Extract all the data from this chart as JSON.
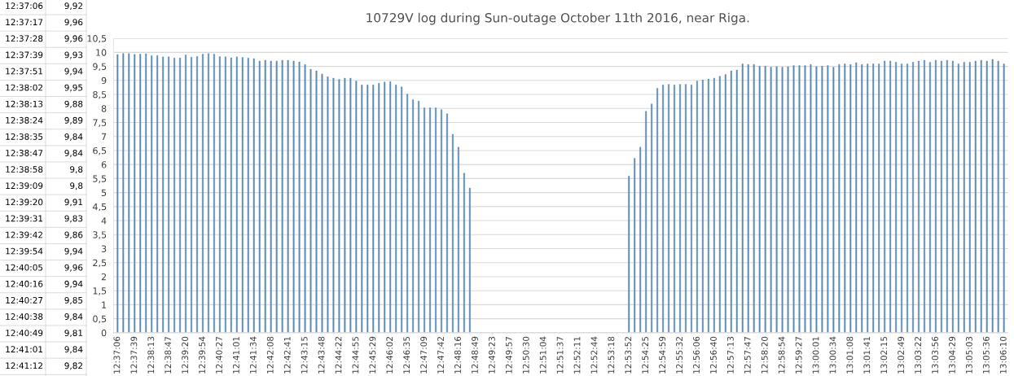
{
  "chart_data": {
    "type": "bar",
    "title": "10729V log during Sun-outage October 11th 2016, near Riga.",
    "categories": [
      "12:37:06",
      null,
      null,
      "12:37:39",
      null,
      null,
      "12:38:13",
      null,
      null,
      "12:38:47",
      null,
      null,
      "12:39:20",
      null,
      null,
      "12:39:54",
      null,
      null,
      "12:40:27",
      null,
      null,
      "12:41:01",
      null,
      null,
      "12:41:34",
      null,
      null,
      "12:42:08",
      null,
      null,
      "12:42:41",
      null,
      null,
      "12:43:15",
      null,
      null,
      "12:43:48",
      null,
      null,
      "12:44:22",
      null,
      null,
      "12:44:55",
      null,
      null,
      "12:45:29",
      null,
      null,
      "12:46:02",
      null,
      null,
      "12:46:35",
      null,
      null,
      "12:47:09",
      null,
      null,
      "12:47:42",
      null,
      null,
      "12:48:16",
      null,
      null,
      "12:48:49",
      null,
      null,
      "12:49:23",
      null,
      null,
      "12:49:57",
      null,
      null,
      "12:50:30",
      null,
      null,
      "12:51:04",
      null,
      null,
      "12:51:37",
      null,
      null,
      "12:52:11",
      null,
      null,
      "12:52:44",
      null,
      null,
      "12:53:18",
      null,
      null,
      "12:53:52",
      null,
      null,
      "12:54:25",
      null,
      null,
      "12:54:59",
      null,
      null,
      "12:55:32",
      null,
      null,
      "12:56:06",
      null,
      null,
      "12:56:40",
      null,
      null,
      "12:57:13",
      null,
      null,
      "12:57:47",
      null,
      null,
      "12:58:20",
      null,
      null,
      "12:58:54",
      null,
      null,
      "12:59:27",
      null,
      null,
      "13:00:01",
      null,
      null,
      "13:00:34",
      null,
      null,
      "13:01:08",
      null,
      null,
      "13:01:41",
      null,
      null,
      "13:02:15",
      null,
      null,
      "13:02:49",
      null,
      null,
      "13:03:22",
      null,
      null,
      "13:03:56",
      null,
      null,
      "13:04:29",
      null,
      null,
      "13:05:03",
      null,
      null,
      "13:05:36",
      null,
      null,
      "13:06:10"
    ],
    "values": [
      9.92,
      9.96,
      9.96,
      9.93,
      9.94,
      9.95,
      9.88,
      9.89,
      9.84,
      9.84,
      9.8,
      9.8,
      9.91,
      9.83,
      9.86,
      9.94,
      9.96,
      9.94,
      9.85,
      9.84,
      9.81,
      9.84,
      9.82,
      9.8,
      9.78,
      9.69,
      9.72,
      9.69,
      9.69,
      9.72,
      9.72,
      9.69,
      9.66,
      9.57,
      9.4,
      9.34,
      9.23,
      9.13,
      9.08,
      9.04,
      9.08,
      9.08,
      8.98,
      8.84,
      8.84,
      8.84,
      8.9,
      8.94,
      8.96,
      8.84,
      8.77,
      8.51,
      8.31,
      8.26,
      8.02,
      8.02,
      8.02,
      7.96,
      7.81,
      7.08,
      6.62,
      5.69,
      5.16,
      0,
      0,
      0,
      0,
      0,
      0,
      0,
      0,
      0,
      0,
      0,
      0,
      0,
      0,
      0,
      0,
      0,
      0,
      0,
      0,
      0,
      0,
      0,
      0,
      0,
      0,
      0,
      5.59,
      6.22,
      6.62,
      7.9,
      8.16,
      8.72,
      8.84,
      8.86,
      8.84,
      8.86,
      8.86,
      8.84,
      8.98,
      9.02,
      9.05,
      9.08,
      9.15,
      9.21,
      9.34,
      9.37,
      9.59,
      9.57,
      9.57,
      9.51,
      9.51,
      9.47,
      9.49,
      9.47,
      9.49,
      9.53,
      9.53,
      9.53,
      9.57,
      9.49,
      9.51,
      9.53,
      9.47,
      9.57,
      9.59,
      9.57,
      9.63,
      9.57,
      9.59,
      9.59,
      9.59,
      9.69,
      9.69,
      9.65,
      9.59,
      9.59,
      9.65,
      9.69,
      9.72,
      9.65,
      9.72,
      9.69,
      9.72,
      9.69,
      9.59,
      9.65,
      9.65,
      9.69,
      9.72,
      9.69,
      9.75,
      9.69,
      9.59
    ],
    "color": "#5b8ab5",
    "ylim": [
      0,
      10.5
    ],
    "yticks": [
      0,
      {
        "value": 0.5,
        "label": "0,5"
      },
      1,
      {
        "value": 1.5,
        "label": "1,5"
      },
      2,
      {
        "value": 2.5,
        "label": "2,5"
      },
      3,
      {
        "value": 3.5,
        "label": "3,5"
      },
      4,
      {
        "value": 4.5,
        "label": "4,5"
      },
      5,
      {
        "value": 5.5,
        "label": "5,5"
      },
      6,
      {
        "value": 6.5,
        "label": "6,5"
      },
      7,
      {
        "value": 7.5,
        "label": "7,5"
      },
      8,
      {
        "value": 8.5,
        "label": "8,5"
      },
      9,
      {
        "value": 9.5,
        "label": "9,5"
      },
      10,
      {
        "value": 10.5,
        "label": "10,5"
      }
    ],
    "grid": "y",
    "annotations": [
      "12:37:06",
      "9,92",
      "12:37:17",
      "9,96",
      "12:37:28",
      "9,96",
      "12:37:39",
      "9,93",
      "12:37:51",
      "9,94",
      "12:38:02",
      "9,95",
      "12:38:13",
      "9,88",
      "12:38:24",
      "9,89",
      "12:38:35",
      "9,84",
      "12:38:47",
      "9,84",
      "12:38:58",
      "9,8",
      "12:39:09",
      "9,8",
      "12:39:20",
      "9,91",
      "12:39:31",
      "9,83",
      "12:39:42",
      "9,86",
      "12:39:54",
      "9,94",
      "12:40:05",
      "9,96",
      "12:40:16",
      "9,94",
      "12:40:27",
      "9,85",
      "12:40:38",
      "9,84",
      "12:40:49",
      "9,81",
      "12:41:01",
      "9,84",
      "12:41:12",
      "9,82"
    ]
  }
}
